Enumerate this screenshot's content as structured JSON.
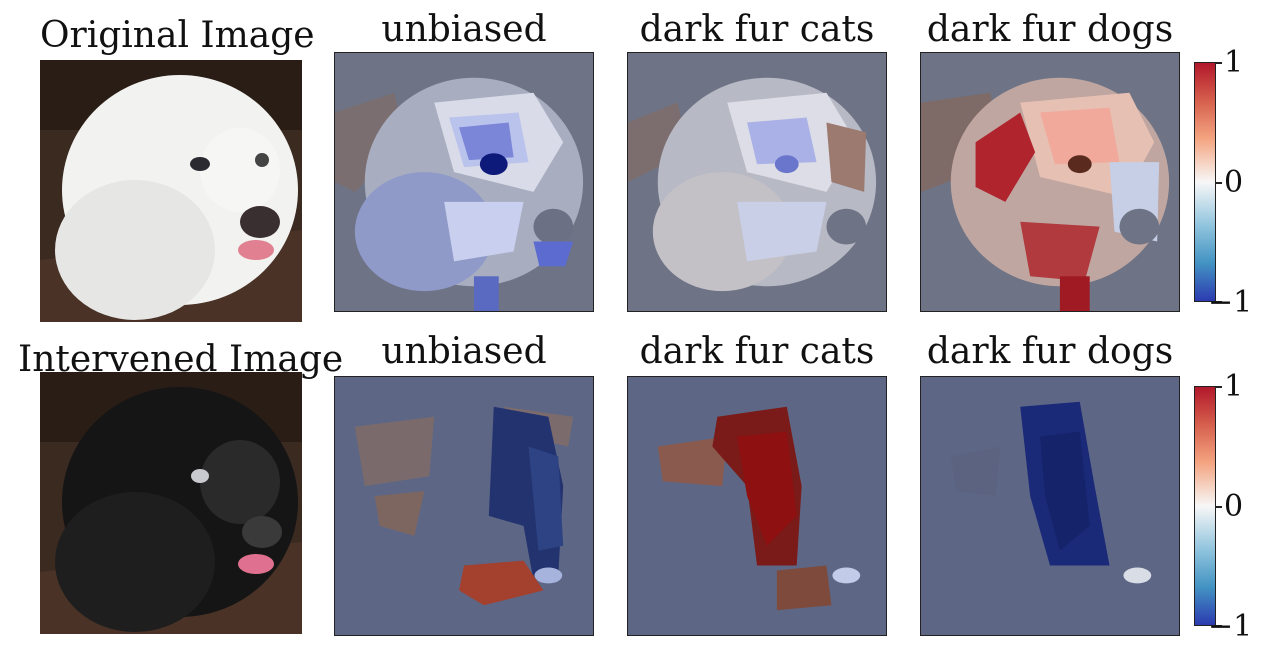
{
  "rows": [
    {
      "label": "Original Image",
      "panels": [
        {
          "title": "unbiased"
        },
        {
          "title": "dark fur cats"
        },
        {
          "title": "dark fur dogs"
        }
      ]
    },
    {
      "label": "Intervened Image",
      "panels": [
        {
          "title": "unbiased"
        },
        {
          "title": "dark fur cats"
        },
        {
          "title": "dark fur dogs"
        }
      ]
    }
  ],
  "colorbar": {
    "max_label": "1",
    "mid_label": "0",
    "min_label": "−1",
    "colormap": "coolwarm",
    "max_color": "#b2182b",
    "mid_color": "#f7f7f7",
    "min_color": "#2c3bb0"
  }
}
